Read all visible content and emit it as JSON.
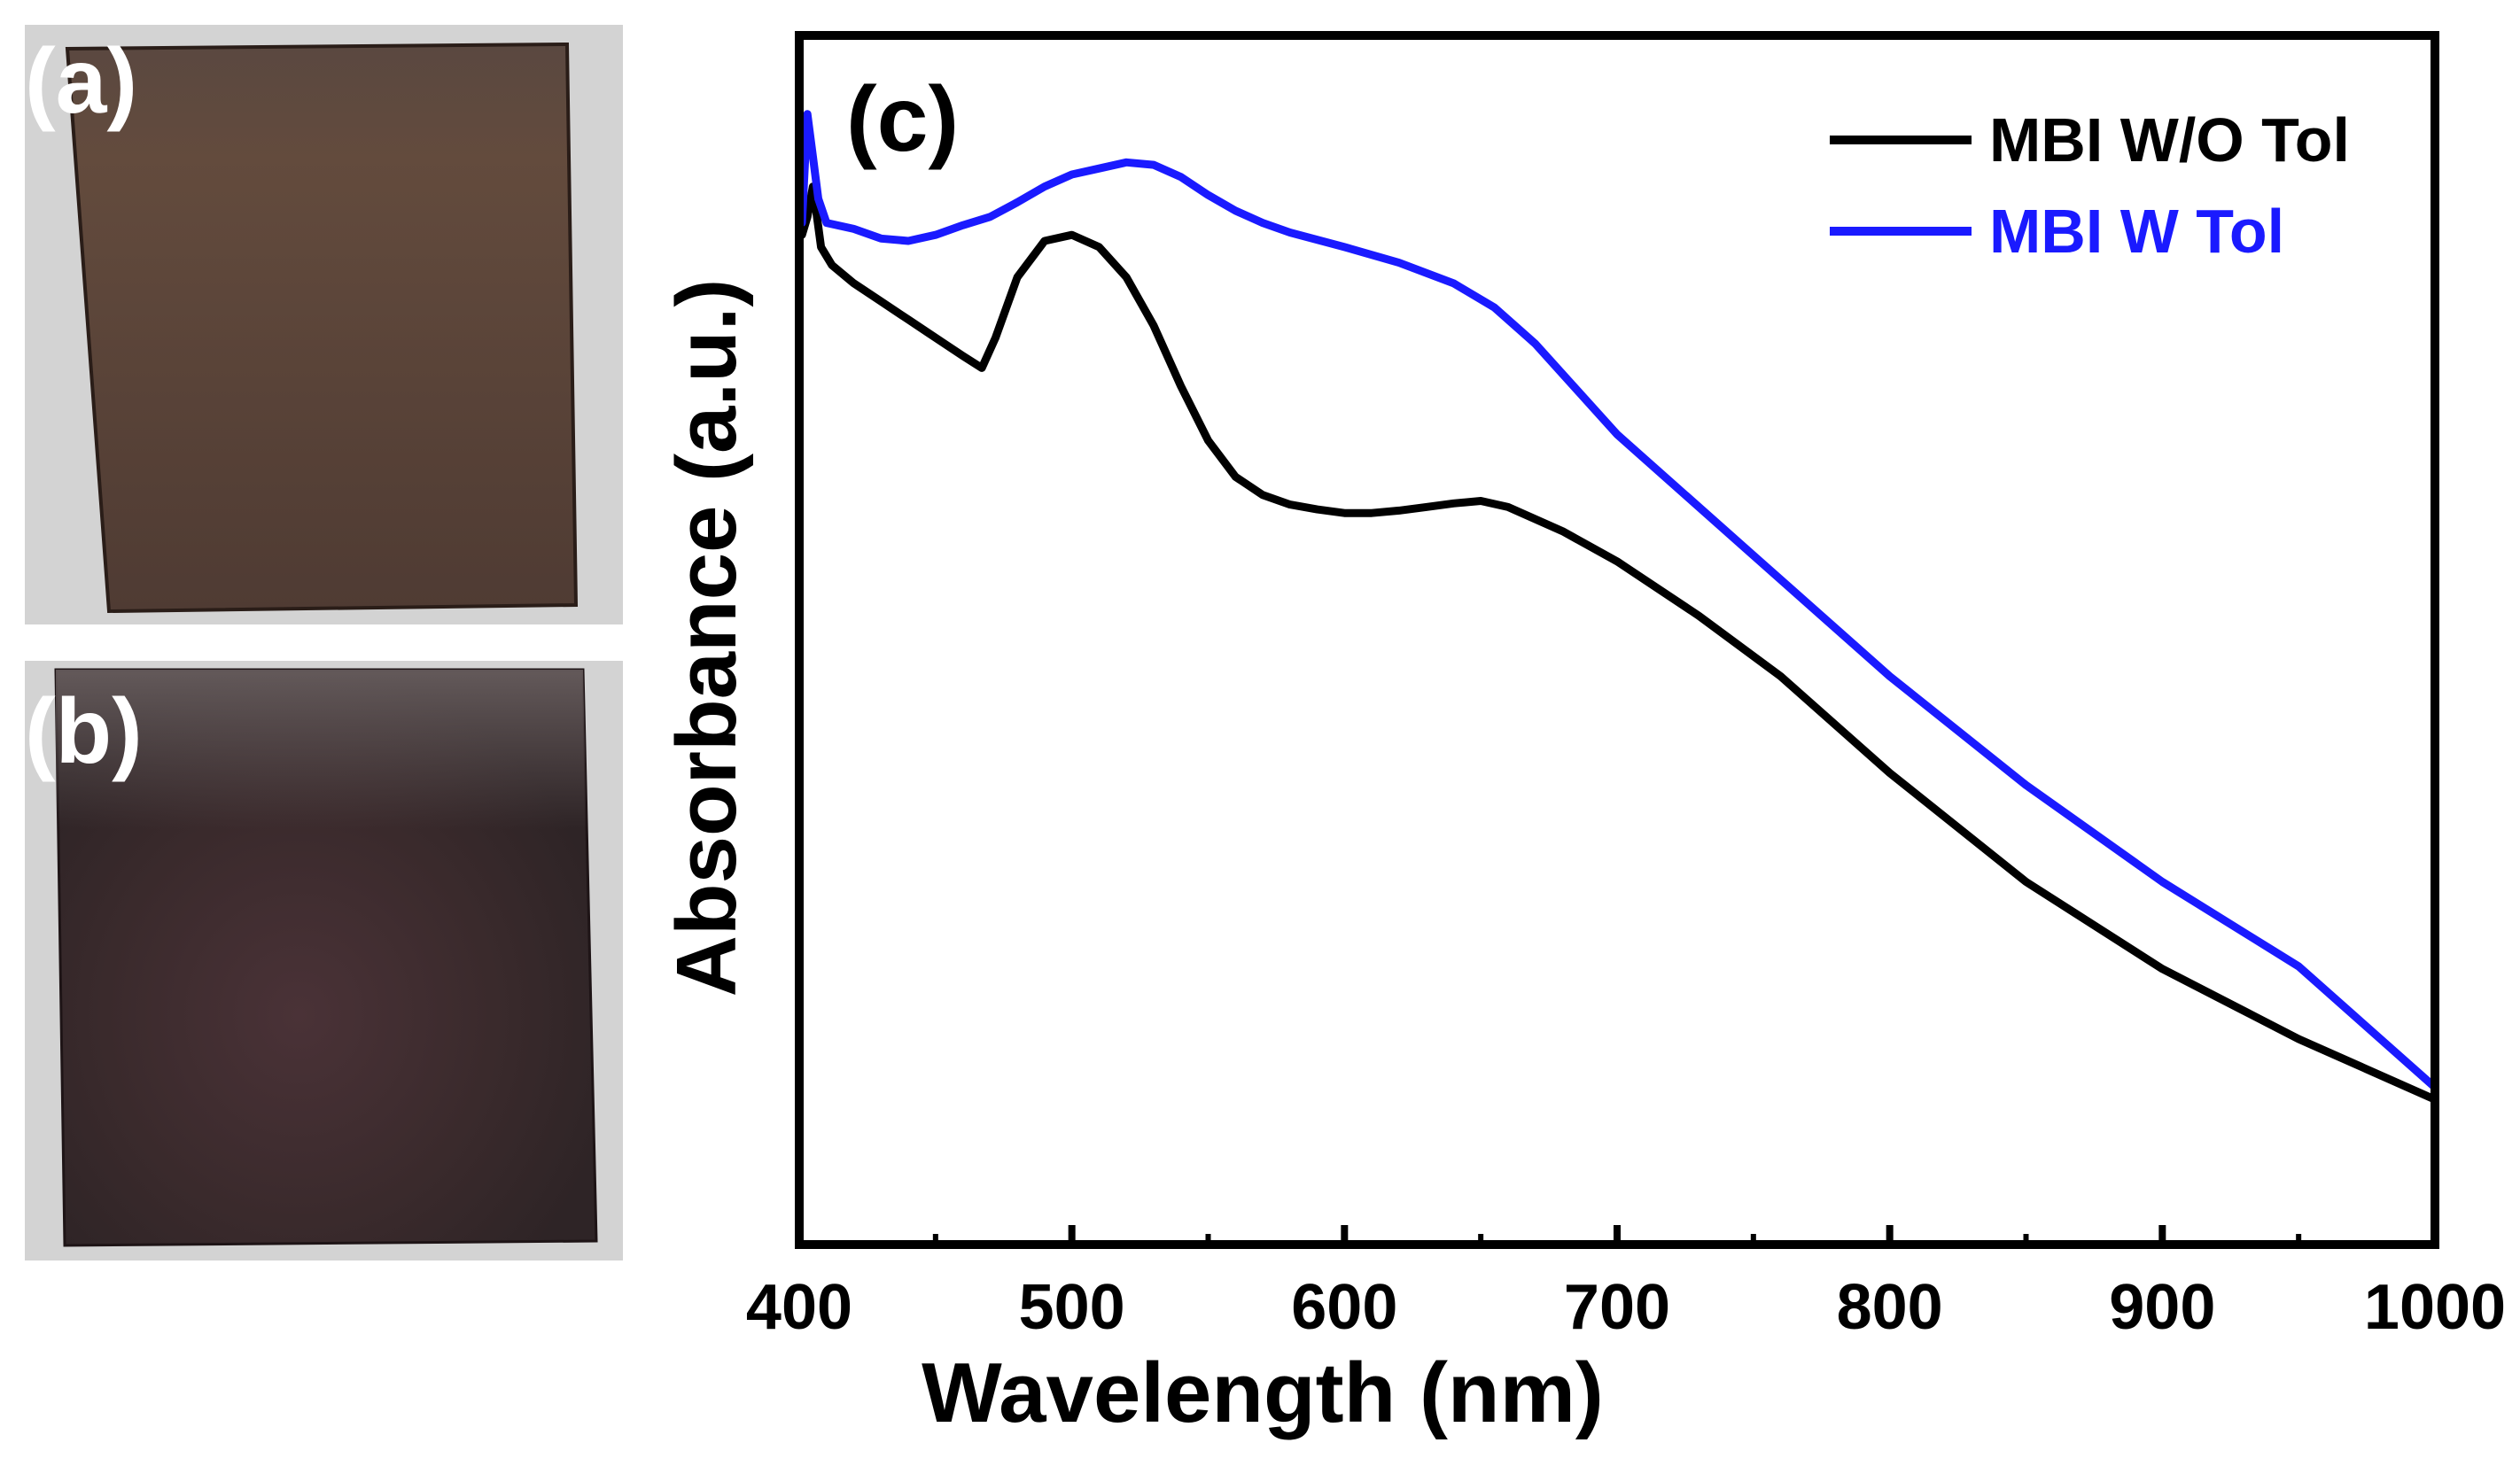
{
  "panels": {
    "a": {
      "label": "(a)"
    },
    "b": {
      "label": "(b)"
    },
    "c": {
      "label": "(c)"
    }
  },
  "colors": {
    "photo_bg": "#d4d4d4",
    "film_a": "#5b4438",
    "film_b": "#3a2a2c",
    "series_black": "#000000",
    "series_blue": "#1a1aff"
  },
  "chart_data": {
    "type": "line",
    "title": "",
    "xlabel": "Wavelength (nm)",
    "ylabel": "Absorbance (a.u.)",
    "xlim": [
      400,
      1000
    ],
    "ylim": [
      0,
      1.0
    ],
    "x_ticks": [
      400,
      500,
      600,
      700,
      800,
      900,
      1000
    ],
    "x_tick_labels": [
      "400",
      "500",
      "600",
      "700",
      "800",
      "900",
      "1000"
    ],
    "y_ticks_labeled": false,
    "legend_position": "top-right",
    "series": [
      {
        "name": "MBI W/O Tol",
        "color": "#000000",
        "x": [
          401,
          403,
          405,
          408,
          412,
          420,
          430,
          440,
          450,
          460,
          467,
          472,
          480,
          490,
          500,
          510,
          520,
          530,
          540,
          550,
          560,
          570,
          580,
          590,
          600,
          610,
          620,
          630,
          640,
          650,
          660,
          680,
          700,
          730,
          760,
          800,
          850,
          900,
          950,
          1000
        ],
        "y": [
          0.835,
          0.85,
          0.875,
          0.825,
          0.81,
          0.795,
          0.78,
          0.765,
          0.75,
          0.735,
          0.725,
          0.75,
          0.8,
          0.83,
          0.835,
          0.825,
          0.8,
          0.76,
          0.71,
          0.665,
          0.635,
          0.62,
          0.612,
          0.608,
          0.605,
          0.605,
          0.607,
          0.61,
          0.613,
          0.615,
          0.61,
          0.59,
          0.565,
          0.52,
          0.47,
          0.39,
          0.3,
          0.228,
          0.17,
          0.12
        ]
      },
      {
        "name": "MBI W Tol",
        "color": "#1a1aff",
        "x": [
          401,
          403,
          405,
          407,
          410,
          420,
          430,
          440,
          450,
          460,
          470,
          480,
          490,
          500,
          510,
          520,
          530,
          540,
          550,
          560,
          570,
          580,
          600,
          620,
          640,
          655,
          670,
          700,
          750,
          800,
          850,
          900,
          950,
          1000
        ],
        "y": [
          0.845,
          0.935,
          0.9,
          0.865,
          0.845,
          0.84,
          0.832,
          0.83,
          0.835,
          0.843,
          0.85,
          0.862,
          0.875,
          0.885,
          0.89,
          0.895,
          0.893,
          0.883,
          0.868,
          0.855,
          0.845,
          0.837,
          0.825,
          0.812,
          0.795,
          0.775,
          0.745,
          0.67,
          0.57,
          0.47,
          0.38,
          0.3,
          0.23,
          0.13
        ]
      }
    ]
  }
}
